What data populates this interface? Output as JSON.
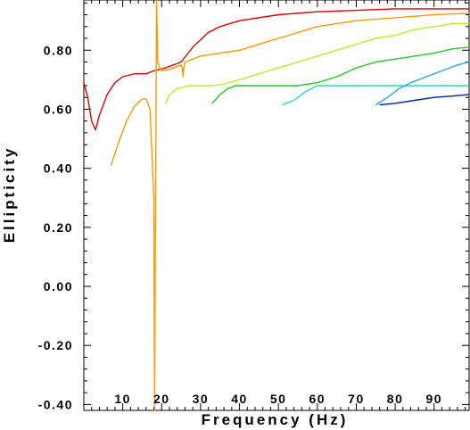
{
  "chart_data": {
    "type": "line",
    "title": "",
    "xlabel": "Frequency (Hz)",
    "ylabel": "Ellipticity",
    "xlim": [
      0,
      99
    ],
    "ylim": [
      -0.42,
      0.97
    ],
    "grid": false,
    "legend": "none",
    "x_ticks": [
      10,
      20,
      30,
      40,
      50,
      60,
      70,
      80,
      90
    ],
    "x_tick_labels": [
      "10",
      "20",
      "30",
      "40",
      "50",
      "60",
      "70",
      "80",
      "90"
    ],
    "y_ticks": [
      -0.4,
      -0.2,
      0.0,
      0.2,
      0.4,
      0.6,
      0.8
    ],
    "y_tick_labels": [
      "-0.40",
      "-0.20",
      "0.00",
      "0.20",
      "0.40",
      "0.60",
      "0.80"
    ],
    "series": [
      {
        "color": "#e00000",
        "points": [
          [
            0,
            0.69
          ],
          [
            1,
            0.64
          ],
          [
            2,
            0.56
          ],
          [
            3,
            0.53
          ],
          [
            4,
            0.58
          ],
          [
            6,
            0.65
          ],
          [
            8,
            0.69
          ],
          [
            10,
            0.71
          ],
          [
            13,
            0.72
          ],
          [
            16,
            0.72
          ],
          [
            18,
            0.73
          ],
          [
            21,
            0.74
          ],
          [
            23,
            0.75
          ],
          [
            25,
            0.76
          ],
          [
            28,
            0.81
          ],
          [
            32,
            0.86
          ],
          [
            35,
            0.88
          ],
          [
            40,
            0.9
          ],
          [
            50,
            0.92
          ],
          [
            60,
            0.93
          ],
          [
            70,
            0.935
          ],
          [
            80,
            0.94
          ],
          [
            90,
            0.94
          ],
          [
            99,
            0.94
          ]
        ]
      },
      {
        "color": "#ff9900",
        "points": [
          [
            7,
            0.41
          ],
          [
            9,
            0.49
          ],
          [
            11,
            0.56
          ],
          [
            13,
            0.61
          ],
          [
            15,
            0.635
          ],
          [
            16,
            0.635
          ],
          [
            17,
            0.6
          ],
          [
            18,
            0.3
          ],
          [
            18.2,
            -0.42
          ],
          [
            18.4,
            0.2
          ],
          [
            18.7,
            0.97
          ],
          [
            19,
            0.76
          ],
          [
            19.5,
            0.74
          ],
          [
            20,
            0.73
          ],
          [
            22,
            0.735
          ],
          [
            25,
            0.75
          ],
          [
            25.3,
            0.74
          ],
          [
            25.5,
            0.71
          ],
          [
            25.7,
            0.74
          ],
          [
            26,
            0.76
          ],
          [
            30,
            0.78
          ],
          [
            35,
            0.79
          ],
          [
            40,
            0.8
          ],
          [
            45,
            0.82
          ],
          [
            50,
            0.84
          ],
          [
            55,
            0.86
          ],
          [
            60,
            0.88
          ],
          [
            70,
            0.9
          ],
          [
            80,
            0.91
          ],
          [
            90,
            0.92
          ],
          [
            99,
            0.925
          ]
        ]
      },
      {
        "color": "#bbee22",
        "points": [
          [
            21,
            0.62
          ],
          [
            22,
            0.65
          ],
          [
            24,
            0.67
          ],
          [
            27,
            0.68
          ],
          [
            30,
            0.68
          ],
          [
            33,
            0.68
          ],
          [
            36,
            0.685
          ],
          [
            40,
            0.7
          ],
          [
            45,
            0.72
          ],
          [
            50,
            0.74
          ],
          [
            55,
            0.76
          ],
          [
            60,
            0.78
          ],
          [
            65,
            0.8
          ],
          [
            70,
            0.82
          ],
          [
            75,
            0.84
          ],
          [
            80,
            0.85
          ],
          [
            85,
            0.87
          ],
          [
            90,
            0.88
          ],
          [
            95,
            0.89
          ],
          [
            99,
            0.89
          ]
        ]
      },
      {
        "color": "#22cc22",
        "points": [
          [
            33,
            0.62
          ],
          [
            35,
            0.65
          ],
          [
            37,
            0.67
          ],
          [
            39,
            0.68
          ],
          [
            45,
            0.68
          ],
          [
            55,
            0.68
          ],
          [
            60,
            0.69
          ],
          [
            65,
            0.71
          ],
          [
            70,
            0.74
          ],
          [
            75,
            0.76
          ],
          [
            80,
            0.77
          ],
          [
            85,
            0.78
          ],
          [
            90,
            0.79
          ],
          [
            95,
            0.805
          ],
          [
            99,
            0.81
          ]
        ]
      },
      {
        "color": "#22ddbb",
        "points": [
          [
            51,
            0.615
          ],
          [
            54,
            0.63
          ],
          [
            57,
            0.66
          ],
          [
            60,
            0.68
          ],
          [
            65,
            0.68
          ],
          [
            70,
            0.68
          ],
          [
            75,
            0.68
          ],
          [
            80,
            0.68
          ],
          [
            90,
            0.68
          ],
          [
            99,
            0.68
          ]
        ]
      },
      {
        "color": "#22aaee",
        "points": [
          [
            75,
            0.615
          ],
          [
            78,
            0.64
          ],
          [
            81,
            0.67
          ],
          [
            84,
            0.69
          ],
          [
            88,
            0.71
          ],
          [
            92,
            0.73
          ],
          [
            96,
            0.75
          ],
          [
            99,
            0.76
          ]
        ]
      },
      {
        "color": "#0022bb",
        "points": [
          [
            76,
            0.615
          ],
          [
            80,
            0.62
          ],
          [
            85,
            0.63
          ],
          [
            90,
            0.64
          ],
          [
            95,
            0.645
          ],
          [
            99,
            0.65
          ]
        ]
      }
    ]
  }
}
